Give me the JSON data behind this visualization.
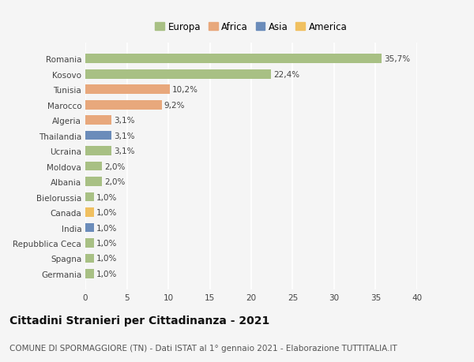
{
  "countries": [
    "Romania",
    "Kosovo",
    "Tunisia",
    "Marocco",
    "Algeria",
    "Thailandia",
    "Ucraina",
    "Moldova",
    "Albania",
    "Bielorussia",
    "Canada",
    "India",
    "Repubblica Ceca",
    "Spagna",
    "Germania"
  ],
  "values": [
    35.7,
    22.4,
    10.2,
    9.2,
    3.1,
    3.1,
    3.1,
    2.0,
    2.0,
    1.0,
    1.0,
    1.0,
    1.0,
    1.0,
    1.0
  ],
  "labels": [
    "35,7%",
    "22,4%",
    "10,2%",
    "9,2%",
    "3,1%",
    "3,1%",
    "3,1%",
    "2,0%",
    "2,0%",
    "1,0%",
    "1,0%",
    "1,0%",
    "1,0%",
    "1,0%",
    "1,0%"
  ],
  "continents": [
    "Europa",
    "Europa",
    "Africa",
    "Africa",
    "Africa",
    "Asia",
    "Europa",
    "Europa",
    "Europa",
    "Europa",
    "America",
    "Asia",
    "Europa",
    "Europa",
    "Europa"
  ],
  "continent_colors": {
    "Europa": "#a8c084",
    "Africa": "#e8a87c",
    "Asia": "#6b8cba",
    "America": "#f0c060"
  },
  "legend_order": [
    "Europa",
    "Africa",
    "Asia",
    "America"
  ],
  "xlim": [
    0,
    40
  ],
  "xticks": [
    0,
    5,
    10,
    15,
    20,
    25,
    30,
    35,
    40
  ],
  "background_color": "#f5f5f5",
  "grid_color": "#ffffff",
  "title": "Cittadini Stranieri per Cittadinanza - 2021",
  "subtitle": "COMUNE DI SPORMAGGIORE (TN) - Dati ISTAT al 1° gennaio 2021 - Elaborazione TUTTITALIA.IT",
  "title_fontsize": 10,
  "subtitle_fontsize": 7.5,
  "bar_height": 0.6,
  "label_fontsize": 7.5,
  "tick_fontsize": 7.5,
  "legend_fontsize": 8.5
}
